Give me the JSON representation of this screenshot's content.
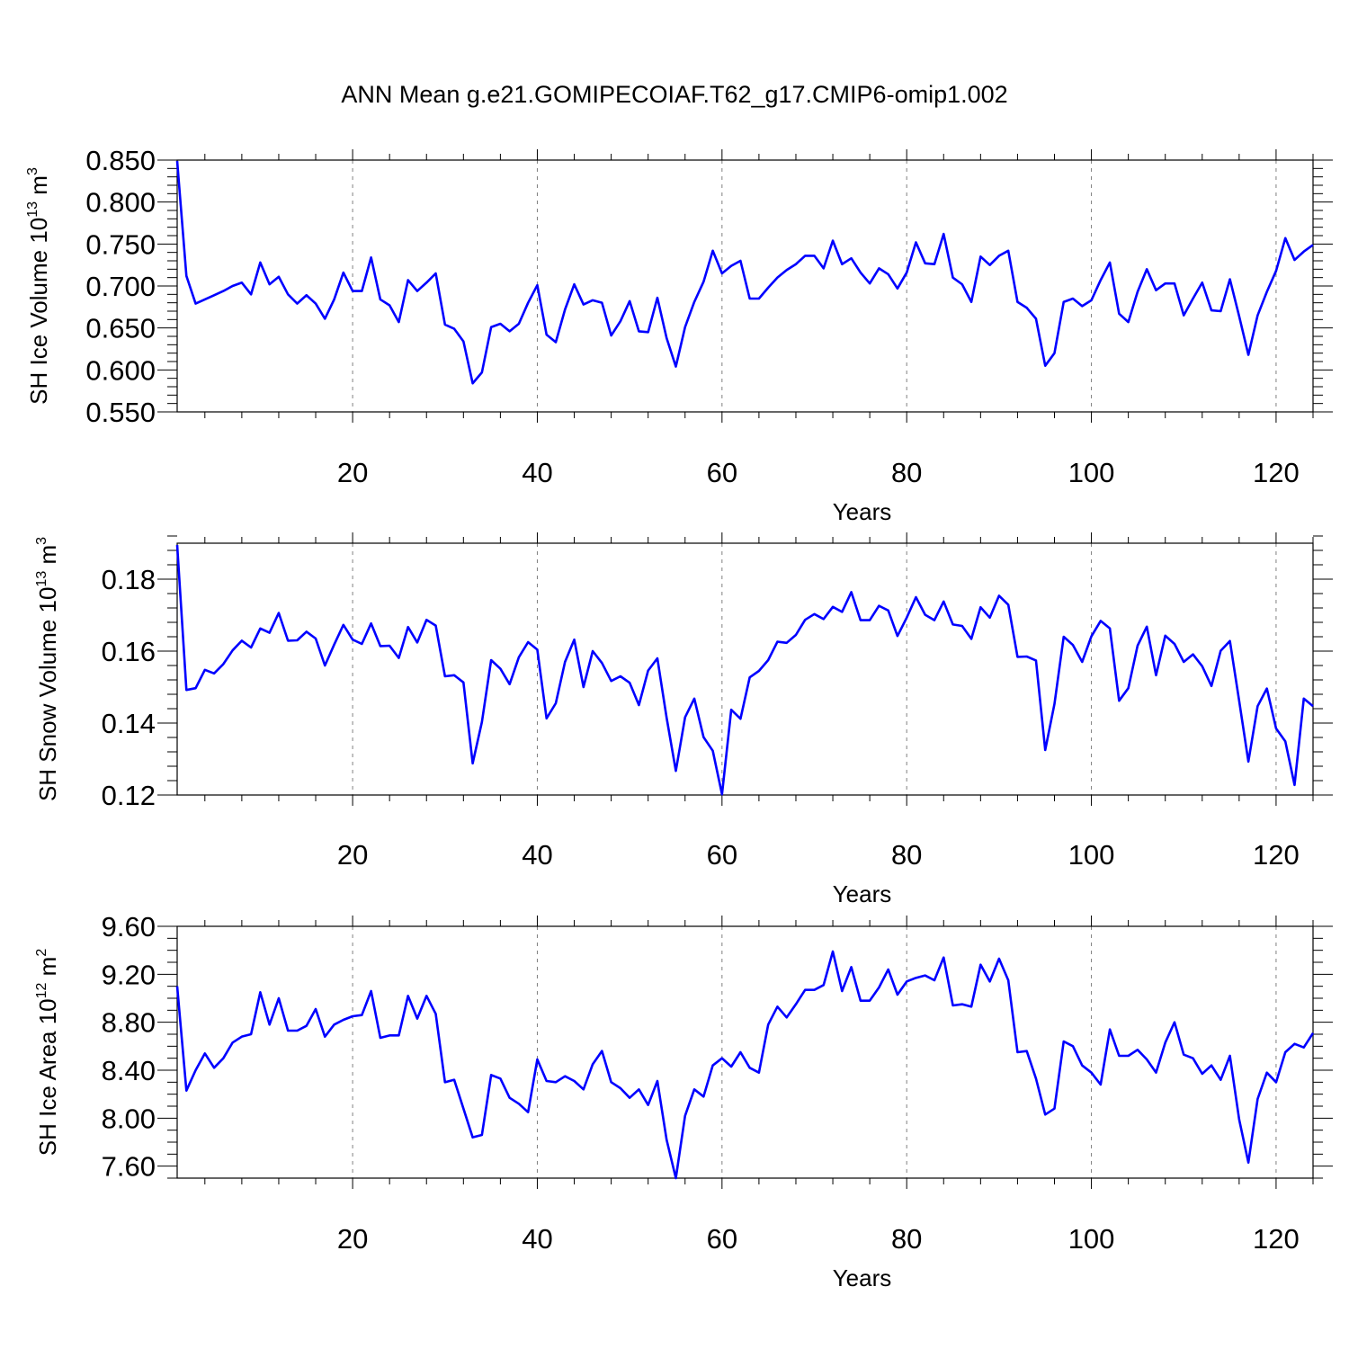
{
  "title": "ANN Mean g.e21.GOMIPECOIAF.T62_g17.CMIP6-omip1.002",
  "colors": {
    "series": "#0000ff",
    "axis": "#000000",
    "grid": "#808080"
  },
  "chart_data": [
    {
      "type": "line",
      "xlabel": "Years",
      "ylabel": {
        "text": "SH Ice Volume 10",
        "exp1": "13",
        "mid": " m",
        "exp2": "3"
      },
      "xlim": [
        1,
        124
      ],
      "ylim": [
        0.55,
        0.85
      ],
      "yticks": [
        0.55,
        0.6,
        0.65,
        0.7,
        0.75,
        0.8,
        0.85
      ],
      "ytick_labels": [
        "0.550",
        "0.600",
        "0.650",
        "0.700",
        "0.750",
        "0.800",
        "0.850"
      ],
      "yminor": 0.01,
      "xticks": [
        20,
        40,
        60,
        80,
        100,
        120
      ],
      "xtick_labels": [
        "20",
        "40",
        "60",
        "80",
        "100",
        "120"
      ],
      "xminor": 4,
      "grid": "vertical dashed at major x ticks",
      "x_start": 1,
      "values": [
        0.849,
        0.712,
        0.679,
        0.684,
        0.689,
        0.694,
        0.7,
        0.704,
        0.69,
        0.728,
        0.702,
        0.711,
        0.69,
        0.679,
        0.689,
        0.679,
        0.661,
        0.684,
        0.716,
        0.694,
        0.694,
        0.734,
        0.684,
        0.677,
        0.657,
        0.707,
        0.694,
        0.704,
        0.715,
        0.654,
        0.649,
        0.634,
        0.584,
        0.597,
        0.651,
        0.655,
        0.646,
        0.655,
        0.68,
        0.701,
        0.642,
        0.633,
        0.672,
        0.702,
        0.678,
        0.683,
        0.68,
        0.641,
        0.658,
        0.682,
        0.646,
        0.645,
        0.686,
        0.638,
        0.604,
        0.651,
        0.681,
        0.705,
        0.742,
        0.715,
        0.724,
        0.73,
        0.685,
        0.685,
        0.698,
        0.71,
        0.719,
        0.726,
        0.736,
        0.736,
        0.721,
        0.754,
        0.726,
        0.733,
        0.716,
        0.703,
        0.721,
        0.714,
        0.697,
        0.716,
        0.752,
        0.727,
        0.726,
        0.762,
        0.71,
        0.702,
        0.681,
        0.735,
        0.725,
        0.736,
        0.742,
        0.681,
        0.674,
        0.661,
        0.605,
        0.62,
        0.681,
        0.685,
        0.676,
        0.683,
        0.707,
        0.728,
        0.667,
        0.657,
        0.693,
        0.72,
        0.695,
        0.703,
        0.703,
        0.665,
        0.685,
        0.704,
        0.671,
        0.67,
        0.708,
        0.664,
        0.618,
        0.665,
        0.693,
        0.718,
        0.757,
        0.731,
        0.741,
        0.749
      ]
    },
    {
      "type": "line",
      "xlabel": "Years",
      "ylabel": {
        "text": "SH Snow Volume 10",
        "exp1": "13",
        "mid": " m",
        "exp2": "3"
      },
      "xlim": [
        1,
        124
      ],
      "ylim": [
        0.12,
        0.19
      ],
      "yticks": [
        0.12,
        0.14,
        0.16,
        0.18
      ],
      "ytick_labels": [
        "0.12",
        "0.14",
        "0.16",
        "0.18"
      ],
      "yminor": 0.004,
      "xticks": [
        20,
        40,
        60,
        80,
        100,
        120
      ],
      "xtick_labels": [
        "20",
        "40",
        "60",
        "80",
        "100",
        "120"
      ],
      "xminor": 4,
      "grid": "vertical dashed at major x ticks",
      "x_start": 1,
      "values": [
        0.1895,
        0.1492,
        0.1497,
        0.1548,
        0.1538,
        0.1564,
        0.1602,
        0.1629,
        0.161,
        0.1663,
        0.1651,
        0.1706,
        0.1629,
        0.163,
        0.1654,
        0.1635,
        0.156,
        0.1618,
        0.1673,
        0.1632,
        0.162,
        0.1677,
        0.1614,
        0.1615,
        0.1581,
        0.1667,
        0.1624,
        0.1687,
        0.1671,
        0.153,
        0.1533,
        0.1513,
        0.1288,
        0.1403,
        0.1575,
        0.1551,
        0.1508,
        0.1583,
        0.1625,
        0.1604,
        0.1413,
        0.1455,
        0.157,
        0.1632,
        0.15,
        0.16,
        0.1567,
        0.1517,
        0.153,
        0.1512,
        0.145,
        0.1546,
        0.158,
        0.1415,
        0.1267,
        0.1416,
        0.1468,
        0.1361,
        0.1323,
        0.1202,
        0.1437,
        0.1412,
        0.1527,
        0.1545,
        0.1575,
        0.1626,
        0.1623,
        0.1645,
        0.1687,
        0.1703,
        0.1689,
        0.1723,
        0.1709,
        0.1764,
        0.1686,
        0.1686,
        0.1726,
        0.1713,
        0.1642,
        0.1693,
        0.175,
        0.1701,
        0.1686,
        0.1738,
        0.1674,
        0.167,
        0.1634,
        0.1722,
        0.1693,
        0.1754,
        0.1729,
        0.1584,
        0.1585,
        0.1574,
        0.1325,
        0.1453,
        0.164,
        0.1617,
        0.157,
        0.1641,
        0.1684,
        0.1663,
        0.1462,
        0.1497,
        0.1615,
        0.1668,
        0.1533,
        0.1643,
        0.162,
        0.157,
        0.1591,
        0.1558,
        0.1503,
        0.1601,
        0.1628,
        0.1462,
        0.1293,
        0.1447,
        0.1496,
        0.1385,
        0.1349,
        0.1228,
        0.1468,
        0.1447
      ]
    },
    {
      "type": "line",
      "xlabel": "Years",
      "ylabel": {
        "text": "SH Ice Area 10",
        "exp1": "12",
        "mid": " m",
        "exp2": "2"
      },
      "xlim": [
        1,
        124
      ],
      "ylim": [
        7.5,
        9.6
      ],
      "yticks": [
        7.6,
        8.0,
        8.4,
        8.8,
        9.2,
        9.6
      ],
      "ytick_labels": [
        "7.60",
        "8.00",
        "8.40",
        "8.80",
        "9.20",
        "9.60"
      ],
      "yminor": 0.1,
      "xticks": [
        20,
        40,
        60,
        80,
        100,
        120
      ],
      "xtick_labels": [
        "20",
        "40",
        "60",
        "80",
        "100",
        "120"
      ],
      "xminor": 4,
      "grid": "vertical dashed at major x ticks",
      "x_start": 1,
      "values": [
        9.1,
        8.23,
        8.4,
        8.54,
        8.42,
        8.5,
        8.63,
        8.68,
        8.7,
        9.05,
        8.78,
        9.0,
        8.73,
        8.73,
        8.77,
        8.91,
        8.68,
        8.78,
        8.82,
        8.85,
        8.86,
        9.06,
        8.67,
        8.69,
        8.69,
        9.02,
        8.83,
        9.02,
        8.87,
        8.3,
        8.32,
        8.08,
        7.84,
        7.86,
        8.36,
        8.33,
        8.17,
        8.12,
        8.05,
        8.49,
        8.31,
        8.3,
        8.35,
        8.31,
        8.24,
        8.45,
        8.56,
        8.3,
        8.25,
        8.17,
        8.24,
        8.11,
        8.31,
        7.82,
        7.5,
        8.02,
        8.24,
        8.18,
        8.44,
        8.5,
        8.43,
        8.55,
        8.42,
        8.38,
        8.78,
        8.93,
        8.84,
        8.95,
        9.07,
        9.07,
        9.11,
        9.39,
        9.06,
        9.26,
        8.98,
        8.98,
        9.09,
        9.24,
        9.03,
        9.14,
        9.17,
        9.19,
        9.15,
        9.34,
        8.94,
        8.95,
        8.93,
        9.28,
        9.14,
        9.33,
        9.15,
        8.55,
        8.56,
        8.33,
        8.03,
        8.08,
        8.64,
        8.6,
        8.44,
        8.38,
        8.28,
        8.74,
        8.52,
        8.52,
        8.57,
        8.49,
        8.38,
        8.63,
        8.8,
        8.53,
        8.5,
        8.37,
        8.44,
        8.32,
        8.52,
        7.99,
        7.63,
        8.16,
        8.38,
        8.3,
        8.55,
        8.62,
        8.59,
        8.71
      ]
    }
  ]
}
